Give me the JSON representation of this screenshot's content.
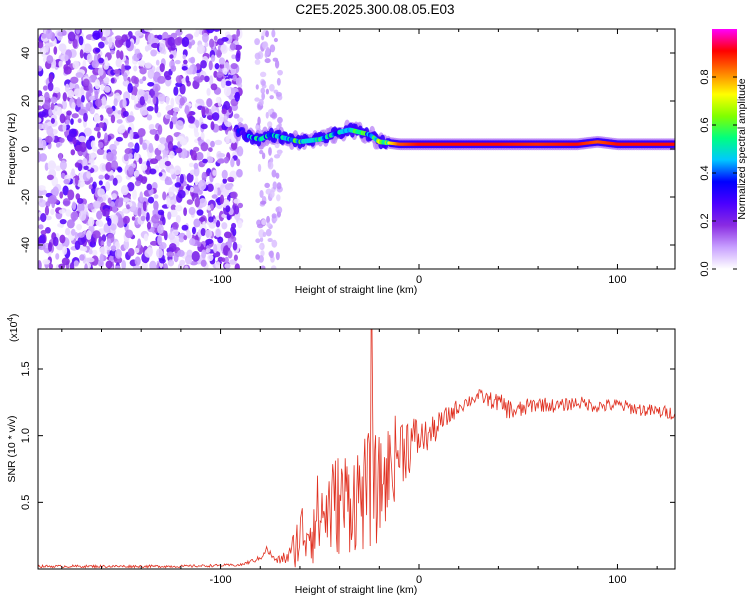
{
  "title": "C2E5.2025.300.08.05.E03",
  "chart_data": [
    {
      "type": "heatmap",
      "name": "spectrogram",
      "xlabel": "Height of straight line (km)",
      "ylabel": "Frequency (Hz)",
      "xlim": [
        -192,
        129
      ],
      "ylim": [
        -50,
        50
      ],
      "xticks": [
        -100,
        0,
        100
      ],
      "xtick_labels": [
        "-100",
        "0",
        "100"
      ],
      "yticks": [
        -40,
        -20,
        0,
        20,
        40
      ],
      "ytick_labels": [
        "-40",
        "-20",
        "0",
        "20",
        "40"
      ],
      "colorbar": {
        "label": "Normalized spectral amplitude",
        "range": [
          0,
          1
        ],
        "ticks": [
          0.0,
          0.2,
          0.4,
          0.6,
          0.8
        ],
        "tick_labels": [
          "0.0",
          "0.2",
          "0.4",
          "0.6",
          "0.8"
        ],
        "colors": [
          "#ffffff",
          "#c8a0ff",
          "#8a2be2",
          "#4b00ff",
          "#0000ff",
          "#00c8ff",
          "#00ff80",
          "#80ff00",
          "#ffff00",
          "#ff8000",
          "#ff0000",
          "#ff00ff"
        ]
      },
      "noise_region_x": [
        -192,
        -90
      ],
      "signal_track": {
        "x": [
          -92,
          -85,
          -80,
          -75,
          -70,
          -60,
          -50,
          -40,
          -35,
          -30,
          -25,
          -20,
          -10,
          0,
          20,
          40,
          60,
          80,
          90,
          100,
          129
        ],
        "freq": [
          8,
          5,
          4,
          6,
          5,
          3,
          4,
          7,
          8,
          7,
          6,
          3,
          2,
          2,
          2,
          2,
          2,
          2,
          3,
          2,
          2
        ],
        "amplitude": [
          0.3,
          0.45,
          0.5,
          0.45,
          0.5,
          0.55,
          0.5,
          0.45,
          0.5,
          0.55,
          0.5,
          0.6,
          0.85,
          0.9,
          0.9,
          0.9,
          0.88,
          0.9,
          0.85,
          0.9,
          0.9
        ]
      }
    },
    {
      "type": "line",
      "name": "snr",
      "xlabel": "Height of straight line (km)",
      "ylabel": "SNR (10 * v/v)",
      "y_scale_label": "(x10",
      "y_scale_exp": "4",
      "y_scale_close": ")",
      "xlim": [
        -192,
        129
      ],
      "ylim": [
        0,
        1.8
      ],
      "xticks": [
        -100,
        0,
        100
      ],
      "xtick_labels": [
        "-100",
        "0",
        "100"
      ],
      "yticks": [
        0.5,
        1.0,
        1.5
      ],
      "ytick_labels": [
        "0.5",
        "1.0",
        "1.5"
      ],
      "color": "#e03020",
      "peak": {
        "x": -24,
        "y": 1.8
      },
      "envelope": {
        "x": [
          -192,
          -120,
          -90,
          -80,
          -77,
          -72,
          -65,
          -60,
          -50,
          -40,
          -30,
          -25,
          -20,
          -15,
          -10,
          -5,
          0,
          5,
          10,
          15,
          20,
          25,
          30,
          35,
          40,
          45,
          50,
          55,
          60,
          70,
          80,
          90,
          100,
          110,
          120,
          129
        ],
        "y": [
          0.02,
          0.02,
          0.03,
          0.08,
          0.15,
          0.06,
          0.1,
          0.25,
          0.4,
          0.5,
          0.55,
          0.58,
          0.6,
          0.75,
          0.9,
          0.95,
          0.98,
          1.0,
          1.08,
          1.15,
          1.22,
          1.26,
          1.3,
          1.27,
          1.25,
          1.2,
          1.18,
          1.22,
          1.24,
          1.22,
          1.25,
          1.22,
          1.23,
          1.2,
          1.18,
          1.17
        ],
        "spread": [
          0.01,
          0.01,
          0.01,
          0.02,
          0.03,
          0.02,
          0.08,
          0.25,
          0.35,
          0.4,
          0.42,
          0.45,
          0.4,
          0.35,
          0.3,
          0.25,
          0.15,
          0.12,
          0.1,
          0.08,
          0.06,
          0.05,
          0.05,
          0.06,
          0.07,
          0.08,
          0.08,
          0.06,
          0.06,
          0.05,
          0.05,
          0.05,
          0.05,
          0.05,
          0.05,
          0.05
        ]
      }
    }
  ]
}
